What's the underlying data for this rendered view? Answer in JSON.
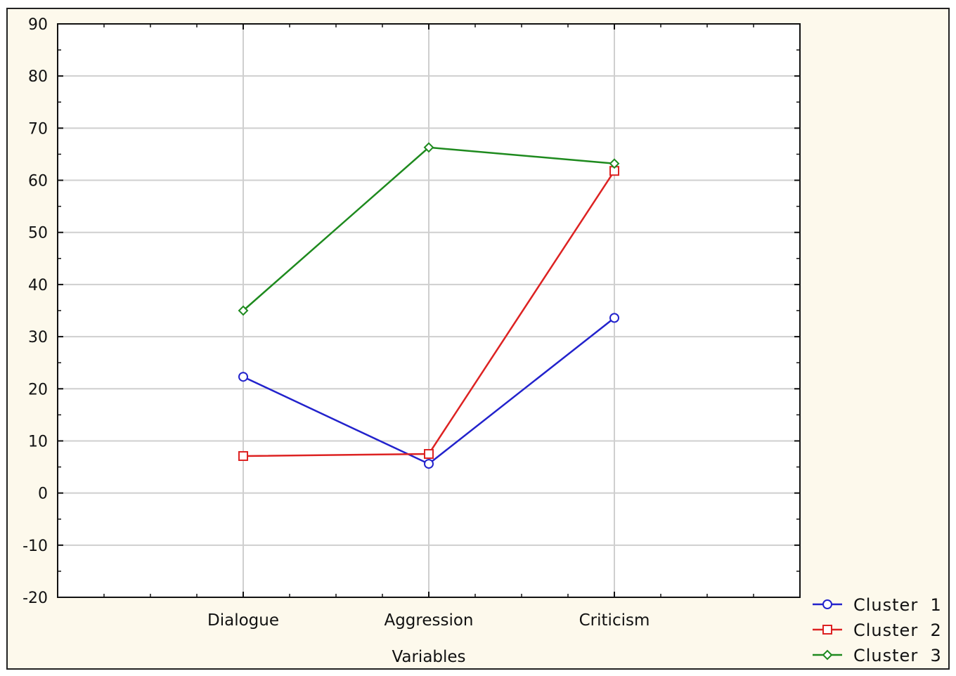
{
  "chart_data": {
    "type": "line",
    "title": "",
    "xlabel": "Variables",
    "ylabel": "",
    "categories": [
      "Dialogue",
      "Aggression",
      "Criticism"
    ],
    "ylim": [
      -20,
      90
    ],
    "yticks": [
      90,
      80,
      70,
      60,
      50,
      40,
      30,
      20,
      10,
      0,
      -10,
      -20
    ],
    "grid": true,
    "legend_position": "bottom-right",
    "series": [
      {
        "name": "Cluster  1",
        "values": [
          22.3,
          5.6,
          33.6
        ],
        "color": "#2222cc",
        "marker": "circle"
      },
      {
        "name": "Cluster  2",
        "values": [
          7.1,
          7.5,
          61.8
        ],
        "color": "#dd2222",
        "marker": "square"
      },
      {
        "name": "Cluster  3",
        "values": [
          35.0,
          66.3,
          63.2
        ],
        "color": "#1e8a1e",
        "marker": "diamond"
      }
    ],
    "colors": {
      "page_background": "#fdf9ec",
      "plot_background": "#ffffff",
      "grid": "#cfcfcf"
    }
  }
}
